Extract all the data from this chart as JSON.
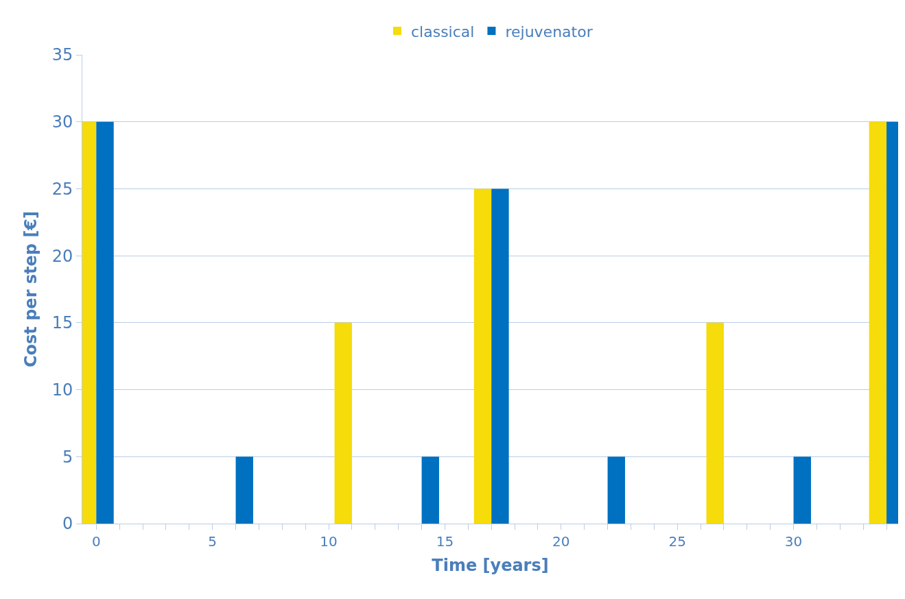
{
  "chart_data": {
    "type": "bar",
    "xlabel": "Time [years]",
    "ylabel": "Cost per step [€]",
    "series": [
      {
        "name": "classical",
        "color": "#f5dc0a",
        "x": [
          0,
          11,
          17,
          27,
          34
        ],
        "values": [
          30,
          15,
          25,
          15,
          30
        ]
      },
      {
        "name": "rejuvenator",
        "color": "#0070c0",
        "x": [
          0,
          6,
          14,
          17,
          22,
          30,
          34
        ],
        "values": [
          30,
          5,
          5,
          25,
          5,
          5,
          30
        ]
      }
    ],
    "xlim": [
      -0.6,
      34.5
    ],
    "ylim": [
      0,
      35
    ],
    "xticks": [
      0,
      {
        "value": 1,
        "label": null
      },
      {
        "value": 2,
        "label": null
      },
      {
        "value": 3,
        "label": null
      },
      {
        "value": 4,
        "label": null
      },
      5,
      {
        "value": 6,
        "label": null
      },
      {
        "value": 7,
        "label": null
      },
      {
        "value": 8,
        "label": null
      },
      {
        "value": 9,
        "label": null
      },
      10,
      {
        "value": 11,
        "label": null
      },
      {
        "value": 12,
        "label": null
      },
      {
        "value": 13,
        "label": null
      },
      {
        "value": 14,
        "label": null
      },
      15,
      {
        "value": 16,
        "label": null
      },
      {
        "value": 17,
        "label": null
      },
      {
        "value": 18,
        "label": null
      },
      {
        "value": 19,
        "label": null
      },
      20,
      {
        "value": 21,
        "label": null
      },
      {
        "value": 22,
        "label": null
      },
      {
        "value": 23,
        "label": null
      },
      {
        "value": 24,
        "label": null
      },
      25,
      {
        "value": 26,
        "label": null
      },
      {
        "value": 27,
        "label": null
      },
      {
        "value": 28,
        "label": null
      },
      {
        "value": 29,
        "label": null
      },
      30,
      {
        "value": 31,
        "label": null
      },
      {
        "value": 32,
        "label": null
      },
      {
        "value": 33,
        "label": null
      },
      {
        "value": 34,
        "label": null
      }
    ],
    "yticks": [
      0,
      5,
      10,
      15,
      20,
      25,
      30,
      35
    ],
    "grid": "y",
    "legend": "top"
  }
}
